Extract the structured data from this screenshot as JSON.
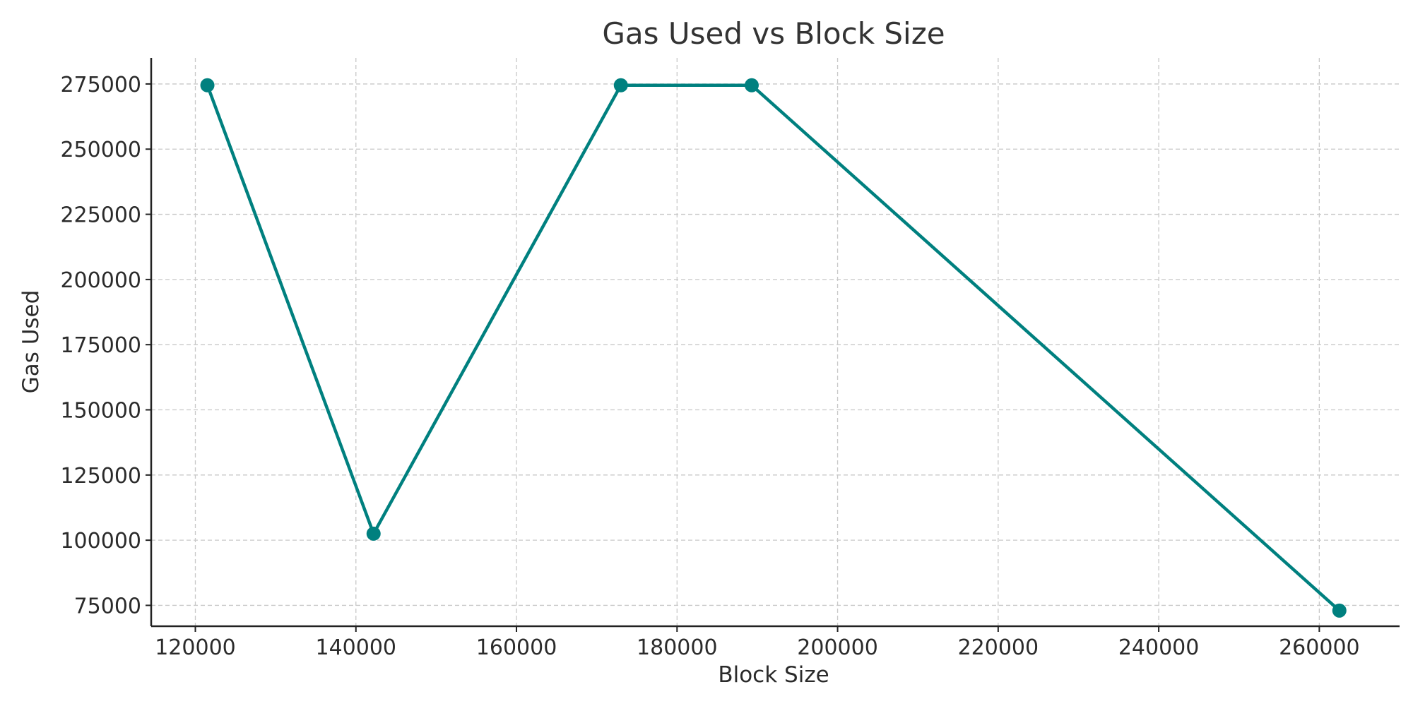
{
  "chart_data": {
    "type": "line",
    "title": "Gas Used vs Block Size",
    "xlabel": "Block Size",
    "ylabel": "Gas Used",
    "xlim": [
      114500,
      270000
    ],
    "ylim": [
      67000,
      285000
    ],
    "x_ticks": [
      120000,
      140000,
      160000,
      180000,
      200000,
      220000,
      240000,
      260000
    ],
    "y_ticks": [
      75000,
      100000,
      125000,
      150000,
      175000,
      200000,
      225000,
      250000,
      275000
    ],
    "grid": true,
    "series": [
      {
        "color": "#00807f",
        "marker": "circle",
        "points": [
          {
            "x": 121500,
            "y": 274500
          },
          {
            "x": 142200,
            "y": 102500
          },
          {
            "x": 173000,
            "y": 274500
          },
          {
            "x": 189300,
            "y": 274500
          },
          {
            "x": 262500,
            "y": 73000
          }
        ]
      }
    ]
  }
}
